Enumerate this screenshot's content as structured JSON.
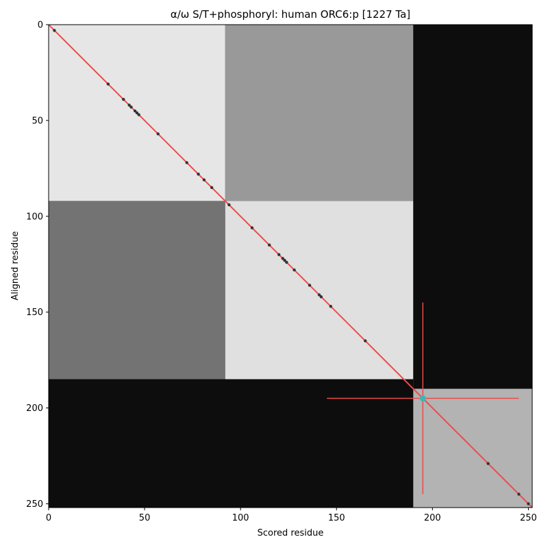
{
  "chart_data": {
    "type": "heatmap",
    "title": "α/ω S/T+phosphoryl: human ORC6:p [1227 Ta]",
    "xlabel": "Scored residue",
    "ylabel": "Aligned residue",
    "xlim": [
      0,
      252
    ],
    "ylim": [
      252,
      0
    ],
    "x_ticks": [
      0,
      50,
      100,
      150,
      200,
      250
    ],
    "y_ticks": [
      0,
      50,
      100,
      150,
      200,
      250
    ],
    "colormap": "grayscale",
    "regions": [
      {
        "x": [
          0,
          252
        ],
        "y": [
          0,
          252
        ],
        "level": 0.35
      },
      {
        "x": [
          0,
          92
        ],
        "y": [
          0,
          92
        ],
        "level": 0.9
      },
      {
        "x": [
          92,
          190
        ],
        "y": [
          92,
          190
        ],
        "level": 0.88
      },
      {
        "x": [
          0,
          92
        ],
        "y": [
          92,
          185
        ],
        "level": 0.45
      },
      {
        "x": [
          92,
          190
        ],
        "y": [
          0,
          92
        ],
        "level": 0.6
      },
      {
        "x": [
          0,
          190
        ],
        "y": [
          185,
          252
        ],
        "level": 0.05
      },
      {
        "x": [
          190,
          252
        ],
        "y": [
          0,
          252
        ],
        "level": 0.05
      },
      {
        "x": [
          190,
          252
        ],
        "y": [
          190,
          252
        ],
        "level": 0.7
      }
    ],
    "diagonal": {
      "from": [
        0,
        0
      ],
      "to": [
        252,
        252
      ],
      "color": "#f04a4a"
    },
    "diagonal_points": [
      3,
      31,
      39,
      42,
      43,
      45,
      46,
      47,
      57,
      72,
      78,
      81,
      85,
      94,
      106,
      115,
      120,
      122,
      123,
      124,
      128,
      136,
      141,
      142,
      147,
      165,
      229,
      245,
      250
    ],
    "marker": {
      "x": 195,
      "y": 195,
      "color": "#3fb5b5"
    },
    "crosshair": {
      "h_range": [
        145,
        245
      ],
      "v_range": [
        145,
        245
      ],
      "color": "#f04a4a"
    }
  }
}
